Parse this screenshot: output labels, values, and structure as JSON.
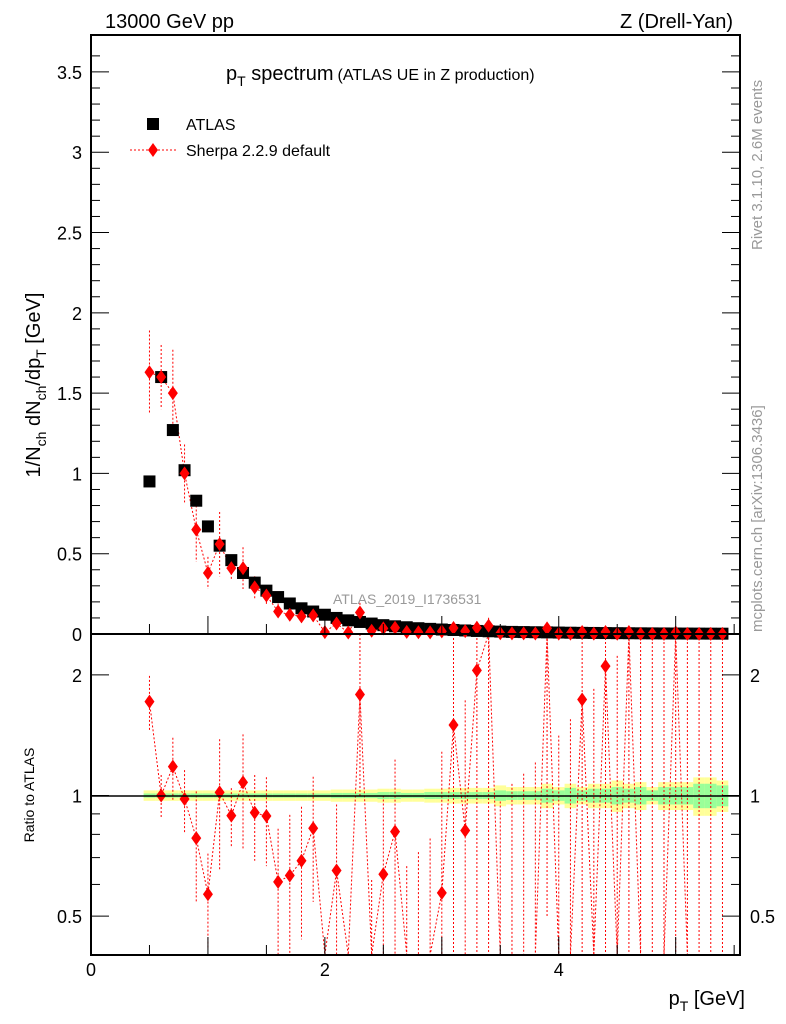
{
  "chart_data": {
    "type": "scatter",
    "header_left": "13000 GeV pp",
    "header_right": "Z (Drell-Yan)",
    "title_main": "p",
    "title_sub": "T",
    "title_word": " spectrum",
    "title_small": "(ATLAS UE in Z production)",
    "ylabel": "1/N_ch dN_ch/dp_T [GeV]",
    "ratio_ylabel": "Ratio to ATLAS",
    "xlabel": "p_T [GeV]",
    "side_text_top": "Rivet 3.1.10,  2.6M events",
    "side_text_bottom": "mcplots.cern.ch [arXiv:1306.3436]",
    "analysis_label": "ATLAS_2019_I1736531",
    "legend": [
      "ATLAS",
      "Sherpa 2.2.9 default"
    ],
    "legend_placement": "top-left",
    "xlim": [
      0,
      5.55
    ],
    "ylim": [
      0,
      3.73
    ],
    "ratio_ylim": [
      0.4,
      2.53
    ],
    "ratio_scale": "log",
    "x_ticks": [
      "0",
      "2",
      "4"
    ],
    "y_ticks": [
      "0",
      "0.5",
      "1",
      "1.5",
      "2",
      "2.5",
      "3",
      "3.5"
    ],
    "ratio_ticks": [
      "0.5",
      "1",
      "2"
    ],
    "colors": {
      "atlas": "#000000",
      "sherpa": "#ff0000",
      "band_total": "#ffff99",
      "band_stat": "#99ff99"
    },
    "bin_width": 0.1,
    "x": [
      0.5,
      0.6,
      0.7,
      0.8,
      0.9,
      1.0,
      1.1,
      1.2,
      1.3,
      1.4,
      1.5,
      1.6,
      1.7,
      1.8,
      1.9,
      2.0,
      2.1,
      2.2,
      2.3,
      2.4,
      2.5,
      2.6,
      2.7,
      2.8,
      2.9,
      3.0,
      3.1,
      3.2,
      3.3,
      3.4,
      3.5,
      3.6,
      3.7,
      3.8,
      3.9,
      4.0,
      4.1,
      4.2,
      4.3,
      4.4,
      4.5,
      4.6,
      4.7,
      4.8,
      4.9,
      5.0,
      5.1,
      5.2,
      5.3,
      5.4
    ],
    "atlas": [
      0.95,
      1.6,
      1.27,
      1.02,
      0.83,
      0.67,
      0.55,
      0.46,
      0.38,
      0.32,
      0.27,
      0.23,
      0.19,
      0.16,
      0.14,
      0.12,
      0.1,
      0.085,
      0.075,
      0.065,
      0.055,
      0.048,
      0.042,
      0.036,
      0.032,
      0.028,
      0.025,
      0.022,
      0.019,
      0.017,
      0.015,
      0.013,
      0.012,
      0.011,
      0.01,
      0.009,
      0.008,
      0.0072,
      0.0065,
      0.0058,
      0.0052,
      0.0047,
      0.0042,
      0.0038,
      0.0034,
      0.0031,
      0.0028,
      0.0025,
      0.0022,
      0.002
    ],
    "sherpa": [
      1.63,
      1.6,
      1.5,
      1.0,
      0.65,
      0.38,
      0.56,
      0.41,
      0.41,
      0.29,
      0.24,
      0.14,
      0.12,
      0.11,
      0.116,
      0.012,
      0.065,
      0.009,
      0.134,
      0.02,
      0.035,
      0.039,
      0.013,
      0.011,
      0.01,
      0.016,
      0.0375,
      0.018,
      0.039,
      0.051,
      0.0045,
      0.0039,
      0.0036,
      0.0033,
      0.035,
      0.0027,
      0.0024,
      0.0125,
      0.002,
      0.0122,
      0.0016,
      0.0126,
      0.0011,
      0.001,
      0.0009,
      0.0093,
      0.0007,
      0.0006,
      0.0005,
      0.0005
    ],
    "sherpa_err": [
      0.26,
      0.2,
      0.27,
      0.18,
      0.2,
      0.1,
      0.2,
      0.07,
      0.13,
      0.07,
      0.06,
      0.05,
      0.05,
      0.04,
      0.04,
      0.03,
      0.03,
      0.02,
      0.06,
      0.02,
      0.02,
      0.02,
      0.015,
      0.015,
      0.015,
      0.02,
      0.04,
      0.02,
      0.04,
      0.05,
      0.01,
      0.01,
      0.01,
      0.01,
      0.03,
      0.01,
      0.01,
      0.02,
      0.01,
      0.02,
      0.01,
      0.02,
      0.01,
      0.01,
      0.01,
      0.02,
      0.01,
      0.01,
      0.01,
      0.01
    ],
    "band_total_rel": [
      0.03,
      0.03,
      0.03,
      0.03,
      0.03,
      0.03,
      0.03,
      0.03,
      0.03,
      0.03,
      0.03,
      0.03,
      0.03,
      0.03,
      0.03,
      0.03,
      0.035,
      0.035,
      0.035,
      0.035,
      0.04,
      0.04,
      0.035,
      0.035,
      0.04,
      0.04,
      0.045,
      0.045,
      0.045,
      0.045,
      0.06,
      0.05,
      0.05,
      0.05,
      0.07,
      0.05,
      0.07,
      0.05,
      0.07,
      0.07,
      0.09,
      0.07,
      0.08,
      0.05,
      0.08,
      0.08,
      0.08,
      0.11,
      0.11,
      0.09
    ],
    "band_stat_rel": [
      0.012,
      0.012,
      0.012,
      0.012,
      0.012,
      0.012,
      0.012,
      0.012,
      0.012,
      0.012,
      0.012,
      0.012,
      0.012,
      0.012,
      0.012,
      0.012,
      0.015,
      0.015,
      0.015,
      0.015,
      0.02,
      0.02,
      0.015,
      0.015,
      0.02,
      0.02,
      0.02,
      0.02,
      0.02,
      0.02,
      0.03,
      0.025,
      0.025,
      0.025,
      0.04,
      0.03,
      0.045,
      0.03,
      0.04,
      0.04,
      0.05,
      0.04,
      0.05,
      0.03,
      0.05,
      0.05,
      0.05,
      0.07,
      0.07,
      0.06
    ]
  }
}
